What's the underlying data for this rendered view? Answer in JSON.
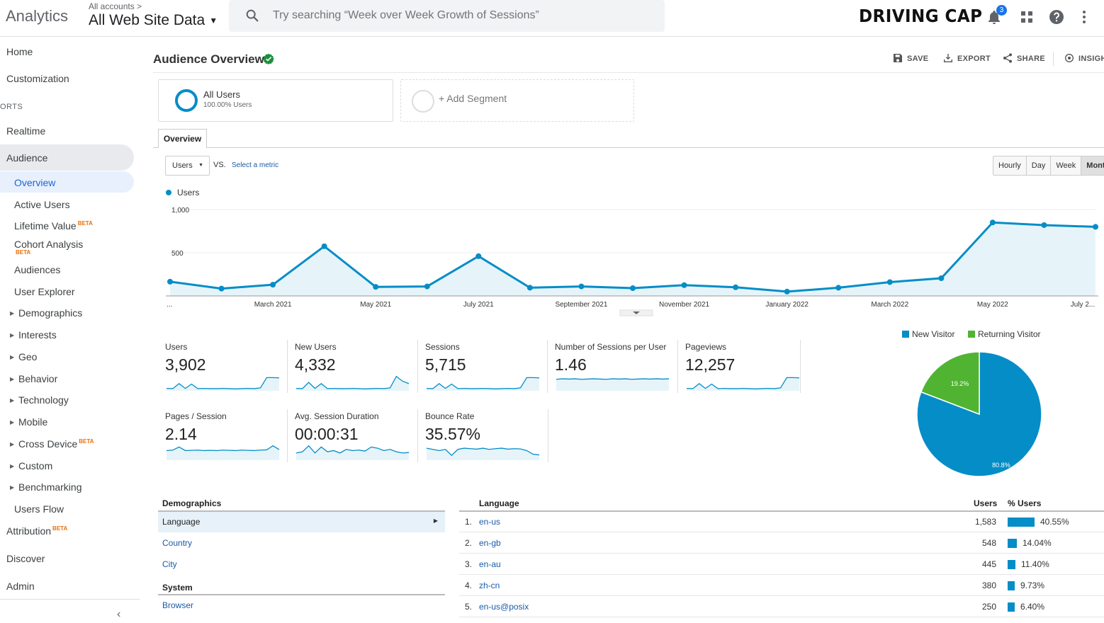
{
  "header": {
    "app_name": "Analytics",
    "account_crumb": "All accounts  >",
    "view_name": "All Web Site Data",
    "search_placeholder": "Try searching “Week over Week Growth of Sessions”",
    "brand": "DRIVING CAP",
    "notification_count": "3"
  },
  "sidebar": {
    "home": "Home",
    "customization": "Customization",
    "reports_section": "ORTS",
    "realtime": "Realtime",
    "audience": "Audience",
    "audience_items": {
      "overview": "Overview",
      "active_users": "Active Users",
      "lifetime_value": "Lifetime Value",
      "cohort_analysis": "Cohort Analysis",
      "audiences": "Audiences",
      "user_explorer": "User Explorer",
      "demographics": "Demographics",
      "interests": "Interests",
      "geo": "Geo",
      "behavior": "Behavior",
      "technology": "Technology",
      "mobile": "Mobile",
      "cross_device": "Cross Device",
      "custom": "Custom",
      "benchmarking": "Benchmarking",
      "users_flow": "Users Flow"
    },
    "attribution": "Attribution",
    "discover": "Discover",
    "admin": "Admin",
    "beta_label": "BETA"
  },
  "page": {
    "title": "Audience Overview",
    "actions": {
      "save": "SAVE",
      "export": "EXPORT",
      "share": "SHARE",
      "insights": "INSIGH"
    }
  },
  "segments": {
    "all_users_name": "All Users",
    "all_users_sub": "100.00% Users",
    "add_segment": "+ Add Segment"
  },
  "tabs": {
    "overview": "Overview"
  },
  "controls": {
    "metric": "Users",
    "vs": "VS.",
    "select_metric": "Select a metric",
    "periods": [
      "Hourly",
      "Day",
      "Week",
      "Month"
    ],
    "active_period": "Month"
  },
  "chart_data": {
    "type": "line",
    "series": [
      {
        "name": "Users",
        "color": "#058dc7",
        "values": [
          165,
          85,
          130,
          575,
          105,
          110,
          460,
          95,
          110,
          90,
          125,
          100,
          50,
          95,
          160,
          205,
          850,
          820,
          800
        ]
      }
    ],
    "x_tick_labels": [
      "...",
      "March 2021",
      "May 2021",
      "July 2021",
      "September 2021",
      "November 2021",
      "January 2022",
      "March 2022",
      "May 2022",
      "July 2..."
    ],
    "y_tick_labels": [
      "1,000",
      "500"
    ],
    "y_ticks": [
      1000,
      500
    ],
    "ylim": [
      0,
      1000
    ],
    "legend": "top-left"
  },
  "scorecards": [
    {
      "label": "Users",
      "value": "3,902",
      "spark": [
        10,
        9,
        30,
        10,
        28,
        9,
        10,
        9,
        9,
        10,
        9,
        8,
        9,
        10,
        9,
        12,
        55,
        55,
        54
      ]
    },
    {
      "label": "New Users",
      "value": "4,332",
      "spark": [
        10,
        9,
        35,
        10,
        30,
        9,
        10,
        9,
        9,
        10,
        9,
        8,
        9,
        10,
        9,
        12,
        60,
        40,
        30
      ]
    },
    {
      "label": "Sessions",
      "value": "5,715",
      "spark": [
        10,
        9,
        30,
        10,
        28,
        9,
        10,
        9,
        9,
        10,
        9,
        8,
        9,
        10,
        9,
        12,
        55,
        55,
        54
      ]
    },
    {
      "label": "Number of Sessions per User",
      "value": "1.46",
      "spark": [
        48,
        50,
        49,
        50,
        48,
        49,
        50,
        49,
        48,
        50,
        49,
        50,
        48,
        49,
        50,
        49,
        50,
        49,
        50
      ]
    },
    {
      "label": "Pageviews",
      "value": "12,257",
      "spark": [
        10,
        9,
        30,
        10,
        28,
        9,
        10,
        9,
        9,
        10,
        9,
        8,
        9,
        10,
        9,
        12,
        55,
        55,
        54
      ]
    },
    {
      "label": "Pages / Session",
      "value": "2.14",
      "spark": [
        40,
        42,
        55,
        40,
        41,
        42,
        40,
        41,
        40,
        42,
        41,
        40,
        42,
        41,
        40,
        42,
        43,
        60,
        44
      ]
    },
    {
      "label": "Avg. Session Duration",
      "value": "00:00:31",
      "spark": [
        30,
        35,
        60,
        30,
        55,
        35,
        40,
        30,
        45,
        40,
        42,
        38,
        55,
        50,
        40,
        45,
        35,
        30,
        32
      ]
    },
    {
      "label": "Bounce Rate",
      "value": "35.57%",
      "spark": [
        50,
        45,
        40,
        45,
        20,
        45,
        50,
        48,
        46,
        50,
        45,
        48,
        50,
        46,
        48,
        47,
        40,
        25,
        22
      ]
    }
  ],
  "pie": {
    "legend": [
      {
        "name": "New Visitor",
        "color": "#058dc7"
      },
      {
        "name": "Returning Visitor",
        "color": "#50b432"
      }
    ],
    "slices": [
      {
        "name": "New Visitor",
        "value": 80.8,
        "label": "80.8%",
        "color": "#058dc7"
      },
      {
        "name": "Returning Visitor",
        "value": 19.2,
        "label": "19.2%",
        "color": "#50b432"
      }
    ]
  },
  "demographics_table": {
    "heading": "Demographics",
    "active": "Language",
    "items": [
      "Country",
      "City"
    ],
    "system_heading": "System",
    "system_items": [
      "Browser"
    ]
  },
  "language_table": {
    "headers": {
      "language": "Language",
      "users": "Users",
      "pct_users": "% Users"
    },
    "rows": [
      {
        "idx": "1.",
        "language": "en-us",
        "users": "1,583",
        "pct": "40.55%",
        "share": 40.55
      },
      {
        "idx": "2.",
        "language": "en-gb",
        "users": "548",
        "pct": "14.04%",
        "share": 14.04
      },
      {
        "idx": "3.",
        "language": "en-au",
        "users": "445",
        "pct": "11.40%",
        "share": 11.4
      },
      {
        "idx": "4.",
        "language": "zh-cn",
        "users": "380",
        "pct": "9.73%",
        "share": 9.73
      },
      {
        "idx": "5.",
        "language": "en-us@posix",
        "users": "250",
        "pct": "6.40%",
        "share": 6.4
      }
    ]
  }
}
